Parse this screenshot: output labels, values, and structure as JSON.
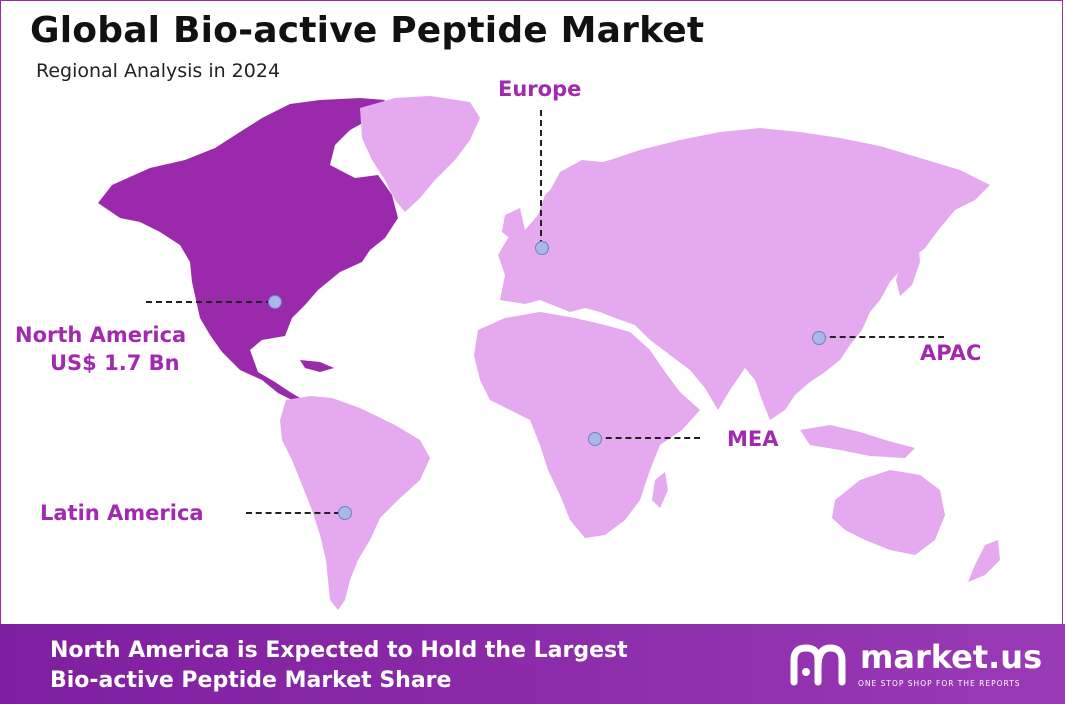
{
  "header": {
    "title": "Global Bio-active Peptide Market",
    "subtitle": "Regional Analysis in 2024"
  },
  "regions": [
    {
      "id": "north-america",
      "name": "North America",
      "value": "US$ 1.7 Bn",
      "color": "#9a2aab",
      "highlighted": true
    },
    {
      "id": "europe",
      "name": "Europe",
      "color": "#e4a9ee"
    },
    {
      "id": "apac",
      "name": "APAC",
      "color": "#e4a9ee"
    },
    {
      "id": "mea",
      "name": "MEA",
      "color": "#e4a9ee"
    },
    {
      "id": "latin-america",
      "name": "Latin America",
      "color": "#e4a9ee"
    }
  ],
  "footer": {
    "line1": "North America is Expected to Hold the Largest",
    "line2": "Bio-active Peptide Market Share"
  },
  "brand": {
    "name": "market.us",
    "tagline": "ONE STOP SHOP FOR THE REPORTS",
    "icon": "market-us-logo-icon"
  },
  "colors": {
    "accent": "#a12ab0",
    "highlight_region": "#9a2aab",
    "other_regions": "#e4a9ee",
    "footer_bg": "#8a2aa8",
    "marker": "#a9b8e8"
  }
}
